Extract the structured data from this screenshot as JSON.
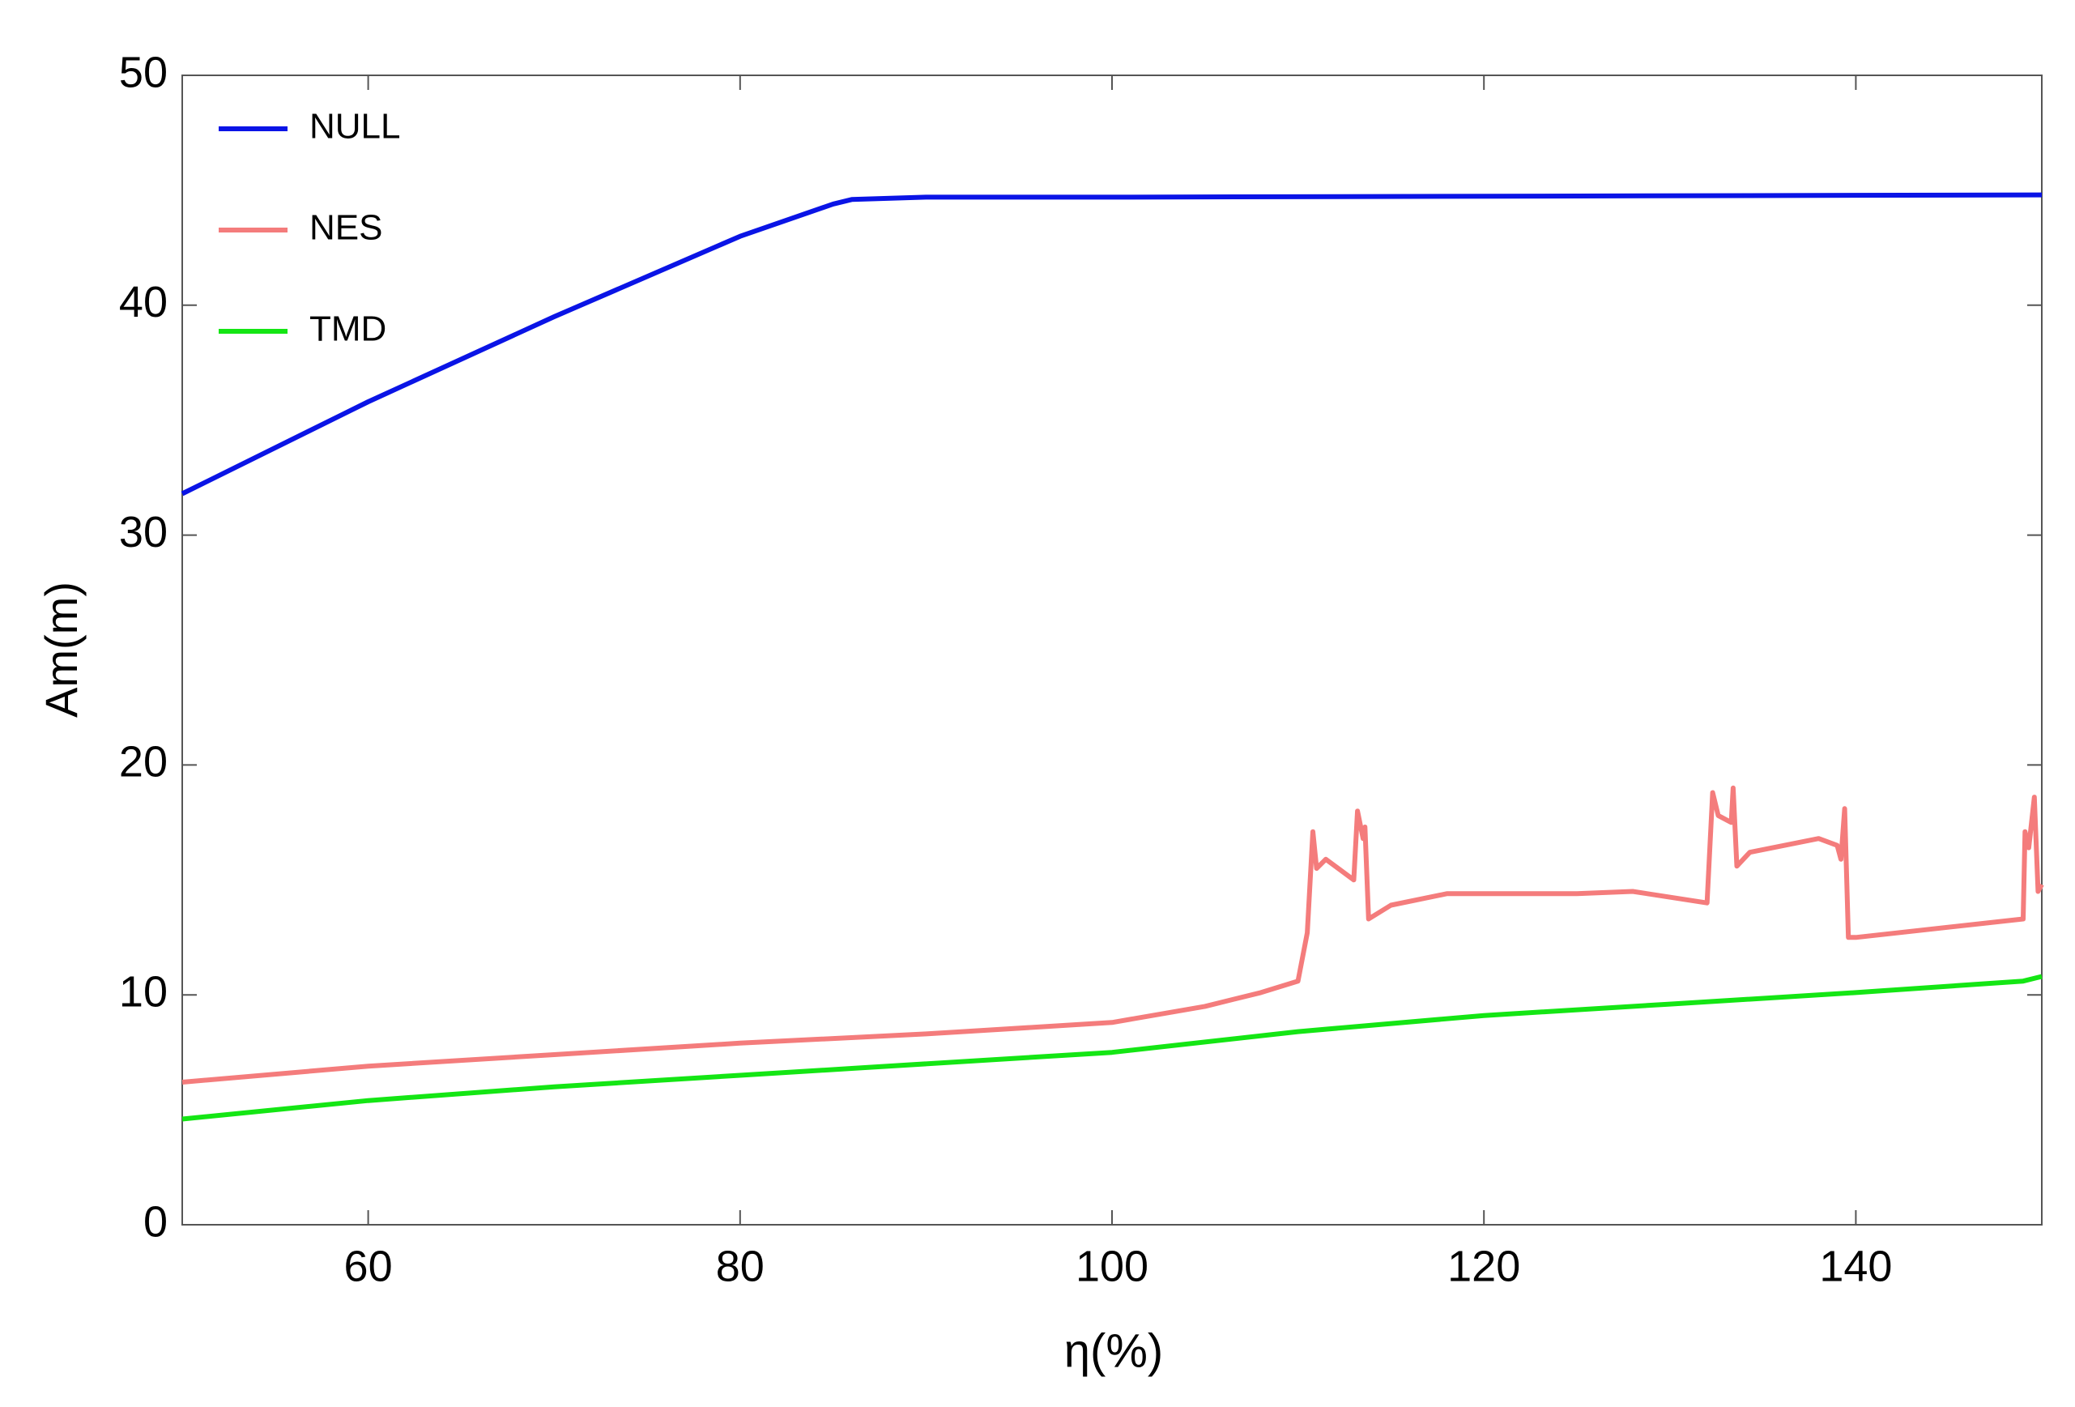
{
  "chart_data": {
    "type": "line",
    "xlabel": "η(%)",
    "ylabel": "Am(m)",
    "xlim": [
      50,
      150
    ],
    "ylim": [
      0,
      50
    ],
    "xticks": [
      60,
      80,
      100,
      120,
      140
    ],
    "yticks": [
      0,
      10,
      20,
      30,
      40,
      50
    ],
    "legend": "upper left",
    "series": [
      {
        "name": "NULL",
        "color": "#0a14e6",
        "x": [
          50,
          60,
          70,
          80,
          85,
          86,
          90,
          100,
          150
        ],
        "values": [
          31.8,
          35.8,
          39.5,
          43,
          44.4,
          44.6,
          44.7,
          44.7,
          44.8
        ]
      },
      {
        "name": "NES",
        "color": "#f47c7c",
        "x": [
          50,
          60,
          70,
          80,
          90,
          100,
          105,
          108,
          110,
          110.5,
          110.8,
          111,
          111.5,
          113,
          113.2,
          113.5,
          113.6,
          113.8,
          115,
          118,
          125,
          128,
          132,
          132.3,
          132.6,
          133.3,
          133.4,
          133.6,
          134.3,
          138,
          139,
          139.2,
          139.4,
          139.6,
          140,
          149,
          149.1,
          149.3,
          149.6,
          149.8,
          150
        ],
        "values": [
          6.2,
          6.9,
          7.4,
          7.9,
          8.3,
          8.8,
          9.5,
          10.1,
          10.6,
          12.7,
          17.1,
          15.5,
          15.9,
          15.0,
          18.0,
          16.8,
          17.3,
          13.3,
          13.9,
          14.4,
          14.4,
          14.5,
          14.0,
          18.8,
          17.8,
          17.5,
          19.0,
          15.6,
          16.2,
          16.8,
          16.5,
          15.9,
          18.1,
          12.5,
          12.5,
          13.3,
          17.1,
          16.4,
          18.6,
          14.5,
          14.8
        ]
      },
      {
        "name": "TMD",
        "color": "#14e614",
        "x": [
          50,
          60,
          70,
          80,
          86,
          100,
          110,
          120,
          130,
          140,
          149,
          150
        ],
        "values": [
          4.6,
          5.4,
          6.0,
          6.5,
          6.8,
          7.5,
          8.4,
          9.1,
          9.6,
          10.1,
          10.6,
          10.8
        ]
      }
    ]
  }
}
